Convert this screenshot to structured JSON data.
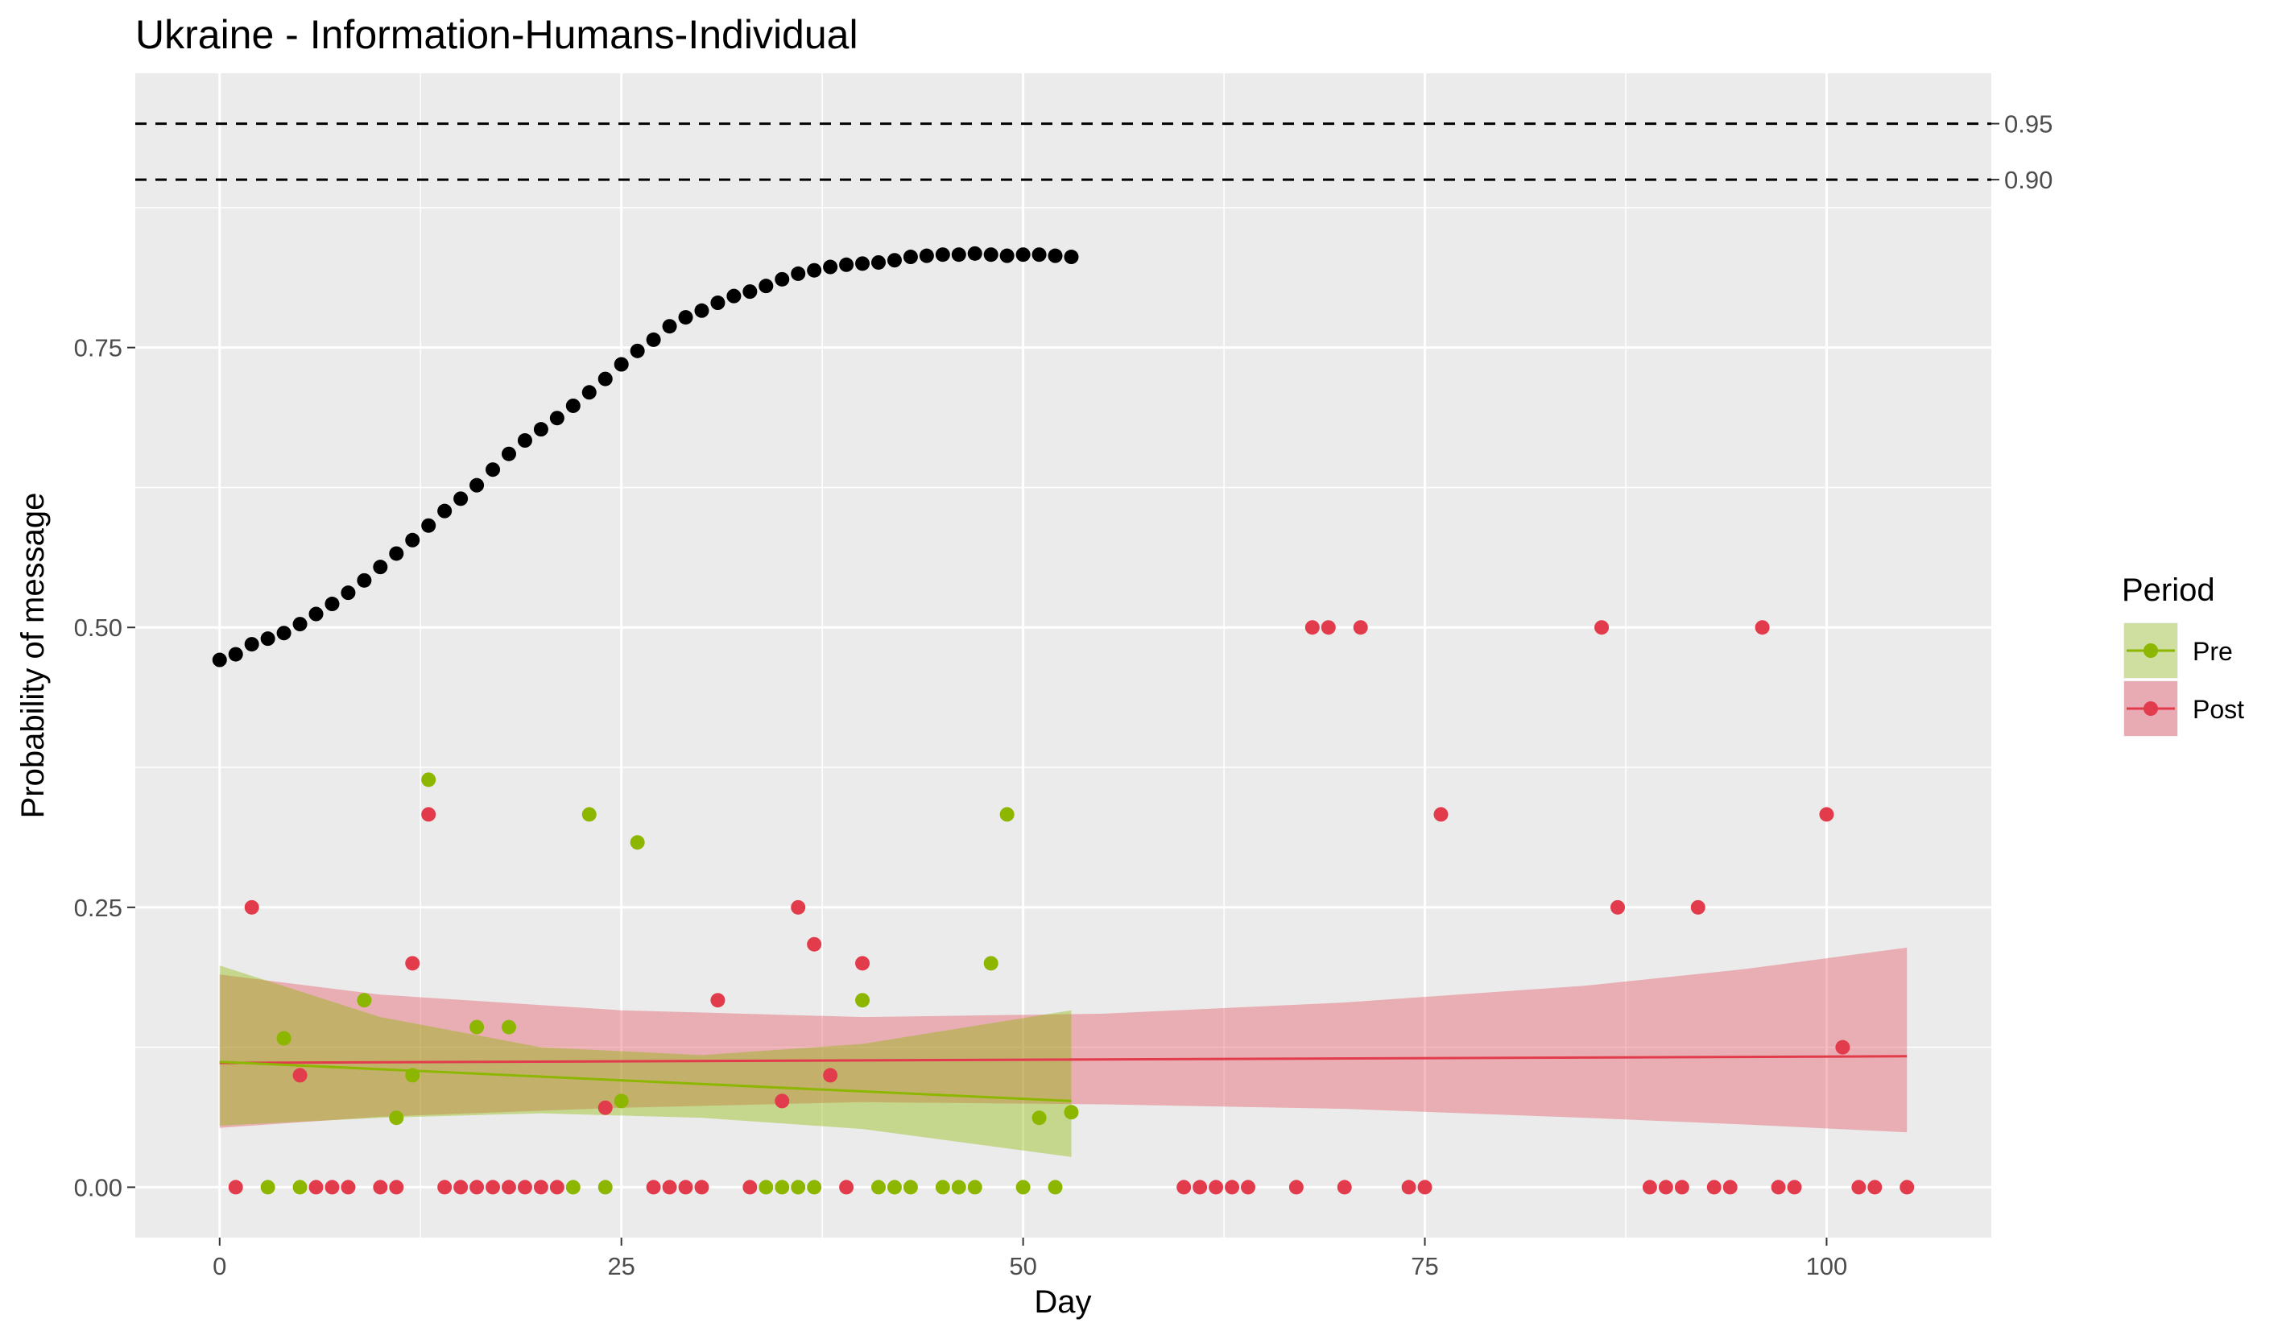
{
  "chart_data": {
    "type": "scatter",
    "title": "Ukraine - Information-Humans-Individual",
    "xlabel": "Day",
    "ylabel": "Probability of message",
    "xlim": [
      -5.25,
      110.25
    ],
    "ylim": [
      -0.045,
      0.995
    ],
    "x_ticks": [
      0,
      25,
      50,
      75,
      100
    ],
    "x_tick_labels": [
      "0",
      "25",
      "50",
      "75",
      "100"
    ],
    "y_ticks": [
      0,
      0.25,
      0.5,
      0.75
    ],
    "y_tick_labels": [
      "0.00",
      "0.25",
      "0.50",
      "0.75"
    ],
    "reference_lines": [
      {
        "y": 0.95,
        "label": "0.95",
        "style": "dashed"
      },
      {
        "y": 0.9,
        "label": "0.90",
        "style": "dashed"
      }
    ],
    "grid": true,
    "background": "#ebebeb",
    "legend": {
      "title": "Period",
      "position": "right",
      "entries": [
        {
          "label": "Pre",
          "color": "#8db600",
          "fill": "#cedf9f"
        },
        {
          "label": "Post",
          "color": "#e23b4b",
          "fill": "#e9abb3"
        }
      ]
    },
    "cumulative_series": {
      "color": "#000000",
      "x": [
        0,
        1,
        2,
        3,
        4,
        5,
        6,
        7,
        8,
        9,
        10,
        11,
        12,
        13,
        14,
        15,
        16,
        17,
        18,
        19,
        20,
        21,
        22,
        23,
        24,
        25,
        26,
        27,
        28,
        29,
        30,
        31,
        32,
        33,
        34,
        35,
        36,
        37,
        38,
        39,
        40,
        41,
        42,
        43,
        44,
        45,
        46,
        47,
        48,
        49,
        50,
        51,
        52,
        53
      ],
      "y": [
        0.471,
        0.476,
        0.485,
        0.49,
        0.495,
        0.503,
        0.512,
        0.521,
        0.531,
        0.542,
        0.554,
        0.566,
        0.578,
        0.591,
        0.604,
        0.615,
        0.627,
        0.641,
        0.655,
        0.667,
        0.677,
        0.687,
        0.698,
        0.71,
        0.722,
        0.735,
        0.747,
        0.757,
        0.769,
        0.777,
        0.783,
        0.79,
        0.796,
        0.8,
        0.805,
        0.811,
        0.816,
        0.819,
        0.822,
        0.824,
        0.825,
        0.826,
        0.828,
        0.831,
        0.832,
        0.833,
        0.833,
        0.834,
        0.833,
        0.832,
        0.833,
        0.833,
        0.832,
        0.831
      ]
    },
    "series": [
      {
        "name": "Pre",
        "color": "#8db600",
        "points": [
          [
            3,
            0
          ],
          [
            4,
            0.133
          ],
          [
            5,
            0
          ],
          [
            9,
            0.167
          ],
          [
            11,
            0.062
          ],
          [
            12,
            0.1
          ],
          [
            13,
            0.364
          ],
          [
            16,
            0.143
          ],
          [
            18,
            0.143
          ],
          [
            22,
            0
          ],
          [
            23,
            0.333
          ],
          [
            24,
            0
          ],
          [
            25,
            0.077
          ],
          [
            26,
            0.308
          ],
          [
            34,
            0
          ],
          [
            35,
            0
          ],
          [
            36,
            0
          ],
          [
            37,
            0
          ],
          [
            40,
            0.167
          ],
          [
            41,
            0
          ],
          [
            42,
            0
          ],
          [
            43,
            0
          ],
          [
            45,
            0
          ],
          [
            46,
            0
          ],
          [
            47,
            0
          ],
          [
            48,
            0.2
          ],
          [
            49,
            0.333
          ],
          [
            50,
            0
          ],
          [
            51,
            0.062
          ],
          [
            52,
            0
          ],
          [
            53,
            0.067
          ]
        ],
        "trend": {
          "x": [
            0,
            53
          ],
          "y": [
            0.112,
            0.077
          ]
        },
        "ribbon": {
          "x": [
            0,
            10,
            20,
            30,
            40,
            53
          ],
          "lower": [
            0.055,
            0.062,
            0.066,
            0.062,
            0.052,
            0.027
          ],
          "upper": [
            0.198,
            0.152,
            0.125,
            0.118,
            0.128,
            0.158
          ]
        }
      },
      {
        "name": "Post",
        "color": "#e23b4b",
        "points": [
          [
            1,
            0
          ],
          [
            2,
            0.25
          ],
          [
            5,
            0.1
          ],
          [
            6,
            0
          ],
          [
            7,
            0
          ],
          [
            8,
            0
          ],
          [
            10,
            0
          ],
          [
            11,
            0
          ],
          [
            12,
            0.2
          ],
          [
            13,
            0.333
          ],
          [
            14,
            0
          ],
          [
            15,
            0
          ],
          [
            16,
            0
          ],
          [
            17,
            0
          ],
          [
            18,
            0
          ],
          [
            19,
            0
          ],
          [
            20,
            0
          ],
          [
            21,
            0
          ],
          [
            24,
            0.071
          ],
          [
            27,
            0
          ],
          [
            28,
            0
          ],
          [
            29,
            0
          ],
          [
            30,
            0
          ],
          [
            31,
            0.167
          ],
          [
            33,
            0
          ],
          [
            35,
            0.077
          ],
          [
            36,
            0.25
          ],
          [
            37,
            0.217
          ],
          [
            38,
            0.1
          ],
          [
            39,
            0
          ],
          [
            40,
            0.2
          ],
          [
            60,
            0
          ],
          [
            61,
            0
          ],
          [
            62,
            0
          ],
          [
            63,
            0
          ],
          [
            64,
            0
          ],
          [
            67,
            0
          ],
          [
            68,
            0.5
          ],
          [
            69,
            0.5
          ],
          [
            70,
            0
          ],
          [
            71,
            0.5
          ],
          [
            74,
            0
          ],
          [
            75,
            0
          ],
          [
            76,
            0.333
          ],
          [
            86,
            0.5
          ],
          [
            87,
            0.25
          ],
          [
            89,
            0
          ],
          [
            90,
            0
          ],
          [
            91,
            0
          ],
          [
            92,
            0.25
          ],
          [
            93,
            0
          ],
          [
            94,
            0
          ],
          [
            96,
            0.5
          ],
          [
            97,
            0
          ],
          [
            98,
            0
          ],
          [
            100,
            0.333
          ],
          [
            101,
            0.125
          ],
          [
            102,
            0
          ],
          [
            103,
            0
          ],
          [
            105,
            0
          ]
        ],
        "trend": {
          "x": [
            0,
            105
          ],
          "y": [
            0.111,
            0.117
          ]
        },
        "ribbon": {
          "x": [
            0,
            10,
            25,
            40,
            55,
            70,
            85,
            95,
            105
          ],
          "lower": [
            0.053,
            0.063,
            0.071,
            0.076,
            0.074,
            0.07,
            0.062,
            0.056,
            0.049
          ],
          "upper": [
            0.19,
            0.172,
            0.158,
            0.152,
            0.155,
            0.165,
            0.18,
            0.195,
            0.214
          ]
        }
      }
    ]
  }
}
